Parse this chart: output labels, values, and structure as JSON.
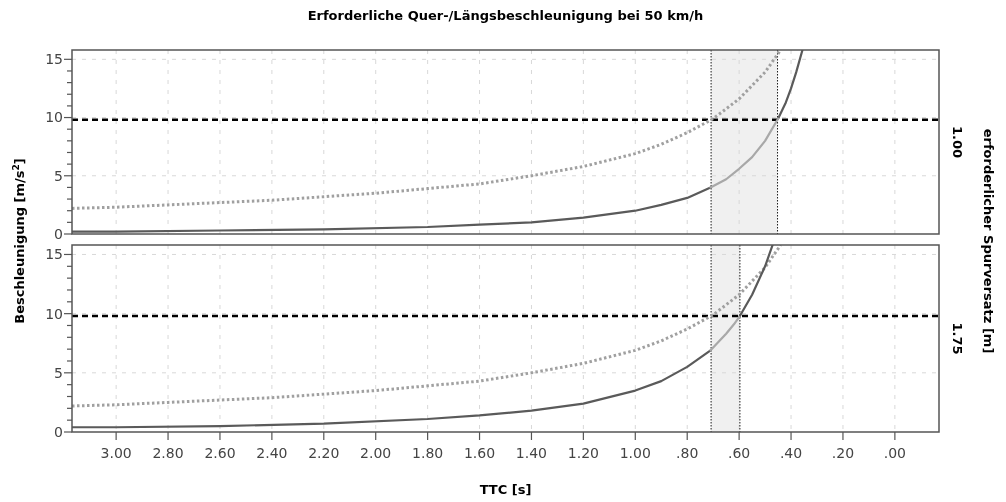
{
  "chart_data": [
    {
      "type": "line",
      "title": "Erforderliche Quer-/Längsbeschleunigung bei 50 km/h",
      "annotations": [
        "1.00"
      ],
      "ylabel": "Beschleunigung [m/s$^{2}$]",
      "y2label": "erforderlicher Spurversatz [m]",
      "xlim": [
        3.17,
        -0.17
      ],
      "xticks": [
        3.0,
        2.8,
        2.6,
        2.4,
        2.2,
        2.0,
        1.8,
        1.6,
        1.4,
        1.2,
        1.0,
        0.8,
        0.6,
        0.4,
        0.2,
        0
      ],
      "ylim": [
        0,
        15.8
      ],
      "yticks": [
        0,
        {
          "value": 1,
          "label": null
        },
        {
          "value": 2,
          "label": null
        },
        {
          "value": 3,
          "label": null
        },
        {
          "value": 4,
          "label": null
        },
        5,
        {
          "value": 6,
          "label": null
        },
        {
          "value": 7,
          "label": null
        },
        {
          "value": 8,
          "label": null
        },
        {
          "value": 9,
          "label": null
        },
        10,
        {
          "value": 11,
          "label": null
        },
        {
          "value": 12,
          "label": null
        },
        {
          "value": 13,
          "label": null
        },
        {
          "value": 14,
          "label": null
        },
        15
      ],
      "tick_labels": "y",
      "grid": true,
      "ref_lines": [
        {
          "axis": "y",
          "value": 9.81,
          "color": "#000000",
          "line_style": "dashed"
        },
        {
          "axis": "x",
          "value": 0.708,
          "color": "#000000",
          "line_style": "dotted"
        },
        {
          "axis": "x",
          "value": 0.452,
          "color": "#000000",
          "line_style": "dotted"
        }
      ],
      "bands": [
        {
          "axis": "x",
          "from": 0.708,
          "to": 0.452,
          "color": "#f0f0f0"
        }
      ],
      "series": [
        {
          "color": "#a0a0a0",
          "line_style": "dotted",
          "x": [
            3.17,
            3.0,
            2.8,
            2.6,
            2.4,
            2.2,
            2.0,
            1.8,
            1.6,
            1.4,
            1.2,
            1.0,
            0.9,
            0.8,
            0.7,
            0.6,
            0.5,
            0.44
          ],
          "values": [
            2.2,
            2.3,
            2.5,
            2.7,
            2.9,
            3.2,
            3.5,
            3.9,
            4.3,
            5.0,
            5.8,
            6.9,
            7.7,
            8.7,
            9.9,
            11.6,
            13.9,
            15.8
          ]
        },
        {
          "color": "#5a5a5a",
          "line_style": "solid",
          "x": [
            3.17,
            3.0,
            2.6,
            2.2,
            1.8,
            1.6,
            1.4,
            1.2,
            1.0,
            0.9,
            0.8,
            0.71,
            0.6,
            0.45,
            0.42,
            0.4,
            0.38,
            0.356
          ],
          "values": [
            0.2,
            0.2,
            0.3,
            0.4,
            0.6,
            0.8,
            1.0,
            1.4,
            2.0,
            2.5,
            3.1,
            4.0,
            null,
            9.9,
            11.3,
            12.5,
            13.9,
            15.8
          ]
        },
        {
          "color": "#a8a8a8",
          "line_style": "solid",
          "x": [
            0.71,
            0.65,
            0.6,
            0.55,
            0.5,
            0.45
          ],
          "values": [
            4.0,
            4.7,
            5.6,
            6.6,
            8.0,
            9.9
          ]
        }
      ]
    },
    {
      "type": "line",
      "annotations": [
        "1.75"
      ],
      "xlabel": "TTC [s]",
      "xlim": [
        3.17,
        -0.17
      ],
      "xticks": [
        {
          "value": 3.0,
          "label": "3.00"
        },
        {
          "value": 2.8,
          "label": "2.80"
        },
        {
          "value": 2.6,
          "label": "2.60"
        },
        {
          "value": 2.4,
          "label": "2.40"
        },
        {
          "value": 2.2,
          "label": "2.20"
        },
        {
          "value": 2.0,
          "label": "2.00"
        },
        {
          "value": 1.8,
          "label": "1.80"
        },
        {
          "value": 1.6,
          "label": "1.60"
        },
        {
          "value": 1.4,
          "label": "1.40"
        },
        {
          "value": 1.2,
          "label": "1.20"
        },
        {
          "value": 1.0,
          "label": "1.00"
        },
        {
          "value": 0.8,
          "label": ".80"
        },
        {
          "value": 0.6,
          "label": ".60"
        },
        {
          "value": 0.4,
          "label": ".40"
        },
        {
          "value": 0.2,
          "label": ".20"
        },
        {
          "value": 0,
          "label": ".00"
        }
      ],
      "ylim": [
        0,
        15.8
      ],
      "yticks": [
        0,
        {
          "value": 1,
          "label": null
        },
        {
          "value": 2,
          "label": null
        },
        {
          "value": 3,
          "label": null
        },
        {
          "value": 4,
          "label": null
        },
        5,
        {
          "value": 6,
          "label": null
        },
        {
          "value": 7,
          "label": null
        },
        {
          "value": 8,
          "label": null
        },
        {
          "value": 9,
          "label": null
        },
        10,
        {
          "value": 11,
          "label": null
        },
        {
          "value": 12,
          "label": null
        },
        {
          "value": 13,
          "label": null
        },
        {
          "value": 14,
          "label": null
        },
        15
      ],
      "grid": true,
      "ref_lines": [
        {
          "axis": "y",
          "value": 9.81,
          "color": "#000000",
          "line_style": "dashed"
        },
        {
          "axis": "x",
          "value": 0.708,
          "color": "#000000",
          "line_style": "dotted"
        },
        {
          "axis": "x",
          "value": 0.597,
          "color": "#000000",
          "line_style": "dotted"
        }
      ],
      "bands": [
        {
          "axis": "x",
          "from": 0.708,
          "to": 0.597,
          "color": "#f0f0f0"
        }
      ],
      "series": [
        {
          "color": "#a0a0a0",
          "line_style": "dotted",
          "x": [
            3.17,
            3.0,
            2.8,
            2.6,
            2.4,
            2.2,
            2.0,
            1.8,
            1.6,
            1.4,
            1.2,
            1.0,
            0.9,
            0.8,
            0.7,
            0.6,
            0.5,
            0.44
          ],
          "values": [
            2.2,
            2.3,
            2.5,
            2.7,
            2.9,
            3.2,
            3.5,
            3.9,
            4.3,
            5.0,
            5.8,
            6.9,
            7.7,
            8.7,
            9.9,
            11.6,
            13.9,
            15.8
          ]
        },
        {
          "color": "#5a5a5a",
          "line_style": "solid",
          "x": [
            3.17,
            3.0,
            2.6,
            2.2,
            1.8,
            1.6,
            1.4,
            1.2,
            1.0,
            0.9,
            0.8,
            0.71,
            0.65,
            0.6,
            0.55,
            0.5,
            0.471
          ],
          "values": [
            0.4,
            0.4,
            0.5,
            0.7,
            1.1,
            1.4,
            1.8,
            2.4,
            3.5,
            4.3,
            5.5,
            6.9,
            null,
            9.7,
            11.6,
            14.0,
            15.8
          ]
        },
        {
          "color": "#a8a8a8",
          "line_style": "solid",
          "x": [
            0.71,
            0.68,
            0.65,
            0.62,
            0.6
          ],
          "values": [
            6.9,
            7.6,
            8.3,
            9.1,
            9.7
          ]
        }
      ]
    }
  ]
}
